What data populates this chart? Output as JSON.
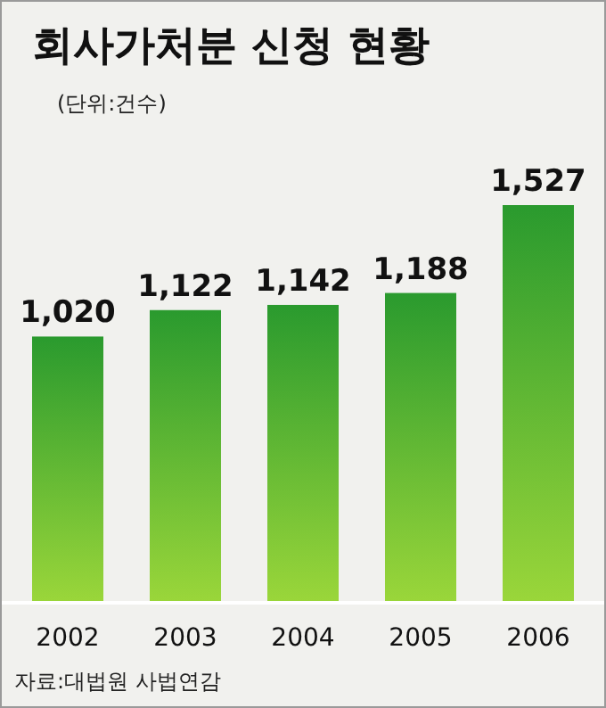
{
  "chart_data": {
    "type": "bar",
    "title": "회사가처분 신청 현황",
    "subtitle": "(단위:건수)",
    "categories": [
      "2002",
      "2003",
      "2004",
      "2005",
      "2006"
    ],
    "values": [
      1020,
      1122,
      1142,
      1188,
      1527
    ],
    "color": "#2a9a2e",
    "value_labels": [
      "1,020",
      "1,122",
      "1,142",
      "1,188",
      "1,527"
    ],
    "annotations": [
      "자료:대법원 사법연감"
    ]
  }
}
